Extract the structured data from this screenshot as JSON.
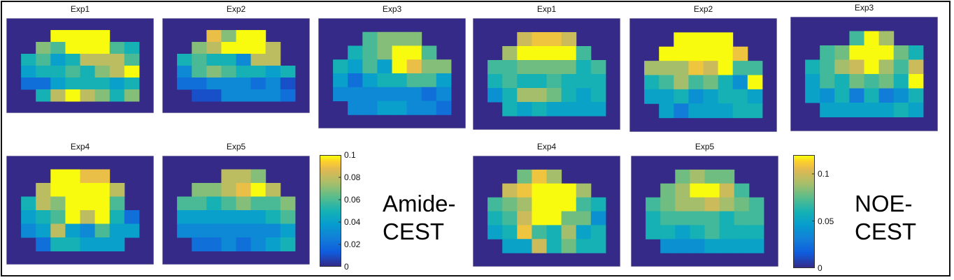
{
  "chart_data": [
    {
      "type": "heatmap",
      "group_label_lines": [
        "Amide-",
        "CEST"
      ],
      "colorbar": {
        "min": 0,
        "max": 0.1,
        "ticks": [
          0,
          0.02,
          0.04,
          0.06,
          0.08,
          0.1
        ],
        "tick_labels": [
          "0",
          "0.02",
          "0.04",
          "0.06",
          "0.08",
          "0.1"
        ]
      },
      "background_color": "#352a87",
      "panels": [
        {
          "title": "Exp1",
          "grid": [
            [
              null,
              null,
              null,
              null,
              null,
              null,
              null,
              null,
              null,
              null
            ],
            [
              null,
              null,
              null,
              0.1,
              0.1,
              0.1,
              0.1,
              null,
              null,
              null
            ],
            [
              null,
              null,
              0.07,
              0.06,
              0.1,
              0.1,
              0.1,
              0.06,
              0.05,
              null
            ],
            [
              null,
              0.05,
              0.06,
              0.04,
              0.05,
              0.08,
              0.08,
              0.08,
              0.06,
              null
            ],
            [
              null,
              0.04,
              0.05,
              0.05,
              0.06,
              0.05,
              0.07,
              0.08,
              0.1,
              null
            ],
            [
              null,
              0.02,
              0.02,
              0.04,
              0.05,
              0.05,
              0.05,
              0.04,
              0.05,
              null
            ],
            [
              null,
              null,
              0.05,
              0.08,
              0.1,
              0.08,
              0.07,
              0.05,
              0.07,
              null
            ],
            [
              null,
              null,
              null,
              null,
              null,
              null,
              null,
              null,
              null,
              null
            ]
          ]
        },
        {
          "title": "Exp2",
          "grid": [
            [
              null,
              null,
              null,
              null,
              null,
              null,
              null,
              null,
              null,
              null
            ],
            [
              null,
              null,
              null,
              0.09,
              0.07,
              0.1,
              0.1,
              null,
              null,
              null
            ],
            [
              null,
              null,
              0.07,
              0.08,
              0.1,
              0.1,
              0.1,
              0.08,
              null,
              null
            ],
            [
              null,
              0.05,
              0.06,
              0.05,
              0.05,
              0.03,
              0.08,
              0.08,
              null,
              null
            ],
            [
              null,
              0.03,
              0.06,
              0.07,
              0.06,
              0.05,
              0.05,
              0.04,
              0.05,
              null
            ],
            [
              null,
              0.02,
              0.02,
              0.03,
              0.03,
              0.03,
              0.02,
              0.03,
              0.01,
              null
            ],
            [
              null,
              null,
              0.01,
              0.01,
              0.03,
              0.03,
              0.03,
              0.03,
              0.02,
              null
            ],
            [
              null,
              null,
              null,
              null,
              null,
              null,
              null,
              null,
              null,
              null
            ]
          ]
        },
        {
          "title": "Exp3",
          "grid": [
            [
              null,
              null,
              null,
              null,
              null,
              null,
              null,
              null,
              null,
              null
            ],
            [
              null,
              null,
              null,
              0.06,
              0.07,
              0.07,
              0.07,
              null,
              null,
              null
            ],
            [
              null,
              null,
              0.05,
              0.06,
              0.07,
              0.1,
              0.1,
              0.06,
              null,
              null
            ],
            [
              null,
              0.05,
              0.04,
              0.06,
              0.04,
              0.1,
              0.09,
              0.07,
              0.07,
              null
            ],
            [
              null,
              0.04,
              0.02,
              0.04,
              0.05,
              0.05,
              0.06,
              0.06,
              0.04,
              null
            ],
            [
              null,
              0.03,
              0.03,
              0.03,
              0.03,
              0.03,
              0.03,
              0.02,
              0.03,
              null
            ],
            [
              null,
              null,
              0.03,
              0.03,
              0.04,
              0.04,
              0.03,
              0.03,
              0.02,
              null
            ],
            [
              null,
              null,
              null,
              null,
              null,
              null,
              null,
              null,
              null,
              null
            ]
          ]
        },
        {
          "title": "Exp4",
          "grid": [
            [
              null,
              null,
              null,
              null,
              null,
              null,
              null,
              null,
              null,
              null
            ],
            [
              null,
              null,
              null,
              0.1,
              0.1,
              0.09,
              0.09,
              null,
              null,
              null
            ],
            [
              null,
              null,
              0.08,
              0.1,
              0.1,
              0.1,
              0.1,
              0.08,
              null,
              null
            ],
            [
              null,
              0.05,
              0.08,
              0.07,
              0.1,
              0.1,
              0.1,
              0.06,
              null,
              null
            ],
            [
              null,
              0.04,
              0.05,
              0.06,
              0.1,
              0.08,
              0.1,
              0.05,
              0.02,
              null
            ],
            [
              null,
              0.03,
              0.04,
              0.08,
              0.04,
              0.03,
              0.06,
              0.04,
              0.04,
              null
            ],
            [
              null,
              null,
              0.02,
              0.05,
              0.05,
              0.04,
              0.04,
              0.04,
              null,
              null
            ],
            [
              null,
              null,
              null,
              null,
              null,
              null,
              null,
              null,
              null,
              null
            ]
          ]
        },
        {
          "title": "Exp5",
          "grid": [
            [
              null,
              null,
              null,
              null,
              null,
              null,
              null,
              null,
              null,
              null
            ],
            [
              null,
              null,
              null,
              null,
              0.08,
              0.08,
              0.07,
              null,
              null,
              null
            ],
            [
              null,
              null,
              0.07,
              0.07,
              0.08,
              0.09,
              0.1,
              0.08,
              null,
              null
            ],
            [
              null,
              0.06,
              0.06,
              0.05,
              0.06,
              0.07,
              0.06,
              0.06,
              0.07,
              null
            ],
            [
              null,
              0.04,
              0.04,
              0.04,
              0.04,
              0.04,
              0.04,
              0.05,
              0.06,
              null
            ],
            [
              null,
              0.03,
              0.03,
              0.03,
              0.03,
              0.03,
              0.03,
              0.03,
              0.04,
              null
            ],
            [
              null,
              null,
              0.02,
              0.02,
              0.03,
              0.02,
              0.03,
              0.04,
              0.05,
              null
            ],
            [
              null,
              null,
              null,
              null,
              null,
              null,
              null,
              null,
              null,
              null
            ]
          ]
        }
      ]
    },
    {
      "type": "heatmap",
      "group_label_lines": [
        "NOE-",
        "CEST"
      ],
      "colorbar": {
        "min": 0,
        "max": 0.12,
        "ticks": [
          0,
          0.05,
          0.1
        ],
        "tick_labels": [
          "0",
          "0.05",
          "0.1"
        ]
      },
      "background_color": "#352a87",
      "panels": [
        {
          "title": "Exp1",
          "grid": [
            [
              null,
              null,
              null,
              null,
              null,
              null,
              null,
              null,
              null,
              null
            ],
            [
              null,
              null,
              null,
              0.1,
              0.11,
              0.11,
              0.1,
              null,
              null,
              null
            ],
            [
              null,
              null,
              0.09,
              0.12,
              0.12,
              0.12,
              0.12,
              0.07,
              null,
              null
            ],
            [
              null,
              0.07,
              0.07,
              0.08,
              0.08,
              0.08,
              0.08,
              0.06,
              0.07,
              null
            ],
            [
              null,
              0.06,
              0.07,
              0.06,
              0.06,
              0.07,
              0.06,
              0.06,
              0.06,
              null
            ],
            [
              null,
              0.04,
              0.06,
              0.09,
              0.09,
              0.08,
              0.06,
              0.05,
              0.06,
              null
            ],
            [
              null,
              null,
              0.06,
              0.05,
              0.06,
              0.05,
              0.05,
              0.05,
              0.05,
              null
            ],
            [
              null,
              null,
              null,
              null,
              null,
              null,
              null,
              null,
              null,
              null
            ]
          ]
        },
        {
          "title": "Exp2",
          "grid": [
            [
              null,
              null,
              null,
              null,
              null,
              null,
              null,
              null,
              null,
              null
            ],
            [
              null,
              null,
              null,
              0.12,
              0.12,
              0.12,
              0.12,
              null,
              null,
              null
            ],
            [
              null,
              null,
              0.12,
              0.12,
              0.12,
              0.12,
              0.12,
              0.11,
              null,
              null
            ],
            [
              null,
              0.09,
              0.09,
              0.09,
              0.11,
              0.1,
              0.12,
              0.07,
              0.07,
              null
            ],
            [
              null,
              0.06,
              0.07,
              0.09,
              0.07,
              0.08,
              0.06,
              0.04,
              0.12,
              null
            ],
            [
              null,
              0.05,
              0.05,
              0.06,
              0.04,
              0.05,
              0.06,
              0.06,
              0.05,
              null
            ],
            [
              null,
              null,
              0.05,
              0.03,
              0.05,
              0.05,
              0.05,
              0.06,
              0.06,
              null
            ],
            [
              null,
              null,
              null,
              null,
              null,
              null,
              null,
              null,
              null,
              null
            ]
          ]
        },
        {
          "title": "Exp3",
          "grid": [
            [
              null,
              null,
              null,
              null,
              null,
              null,
              null,
              null,
              null,
              null
            ],
            [
              null,
              null,
              null,
              null,
              0.07,
              0.12,
              0.09,
              null,
              null,
              null
            ],
            [
              null,
              null,
              0.07,
              0.08,
              0.12,
              0.12,
              0.12,
              0.08,
              0.06,
              null
            ],
            [
              null,
              0.06,
              0.07,
              0.09,
              0.1,
              0.12,
              0.09,
              0.07,
              0.1,
              null
            ],
            [
              null,
              0.05,
              0.07,
              0.06,
              0.08,
              0.07,
              0.08,
              0.06,
              0.12,
              null
            ],
            [
              null,
              0.05,
              0.04,
              0.06,
              0.03,
              0.06,
              0.03,
              0.04,
              0.06,
              null
            ],
            [
              null,
              null,
              0.05,
              0.05,
              0.05,
              0.05,
              0.05,
              0.06,
              0.05,
              null
            ],
            [
              null,
              null,
              null,
              null,
              null,
              null,
              null,
              null,
              null,
              null
            ]
          ]
        },
        {
          "title": "Exp4",
          "grid": [
            [
              null,
              null,
              null,
              null,
              null,
              null,
              null,
              null,
              null,
              null
            ],
            [
              null,
              null,
              null,
              0.08,
              0.11,
              0.09,
              null,
              null,
              null,
              null
            ],
            [
              null,
              null,
              0.1,
              0.11,
              0.12,
              0.12,
              0.12,
              0.09,
              null,
              null
            ],
            [
              null,
              0.07,
              0.08,
              0.09,
              0.12,
              0.12,
              0.12,
              0.07,
              0.06,
              null
            ],
            [
              null,
              0.06,
              0.07,
              0.1,
              0.12,
              0.12,
              0.08,
              0.08,
              0.04,
              null
            ],
            [
              null,
              0.05,
              0.06,
              0.11,
              0.07,
              0.06,
              0.09,
              0.05,
              0.06,
              null
            ],
            [
              null,
              null,
              0.05,
              0.05,
              0.1,
              0.06,
              0.08,
              0.06,
              0.06,
              null
            ],
            [
              null,
              null,
              null,
              null,
              null,
              null,
              null,
              null,
              null,
              null
            ]
          ]
        },
        {
          "title": "Exp5",
          "grid": [
            [
              null,
              null,
              null,
              null,
              null,
              null,
              null,
              null,
              null,
              null
            ],
            [
              null,
              null,
              null,
              0.08,
              0.09,
              0.08,
              0.08,
              null,
              null,
              null
            ],
            [
              null,
              null,
              0.08,
              0.09,
              0.12,
              0.12,
              0.1,
              0.07,
              null,
              null
            ],
            [
              null,
              0.07,
              0.08,
              0.09,
              0.09,
              0.1,
              0.09,
              0.08,
              0.07,
              null
            ],
            [
              null,
              0.06,
              0.07,
              0.07,
              0.07,
              0.07,
              0.06,
              0.07,
              0.07,
              null
            ],
            [
              null,
              0.06,
              0.06,
              0.05,
              0.06,
              0.07,
              0.06,
              0.06,
              0.06,
              null
            ],
            [
              null,
              null,
              0.04,
              0.04,
              0.04,
              0.05,
              0.05,
              0.05,
              0.05,
              null
            ],
            [
              null,
              null,
              null,
              null,
              null,
              null,
              null,
              null,
              null,
              null
            ]
          ]
        }
      ]
    }
  ]
}
